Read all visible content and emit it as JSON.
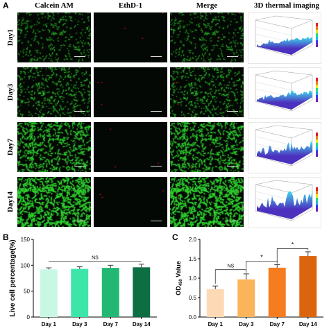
{
  "panel_a": {
    "label": "A",
    "columns": [
      "Calcein AM",
      "EthD-1",
      "Merge",
      "3D thermal imaging"
    ],
    "rows": [
      "Day1",
      "Day3",
      "Day7",
      "Day14"
    ],
    "green_density": [
      0.35,
      0.45,
      0.75,
      1.0
    ],
    "thermal_peak": [
      0.25,
      0.3,
      0.45,
      0.75
    ],
    "colors": {
      "live": "#2ed12e",
      "dead": "#c81414",
      "thermal_low": "#3d1fb8",
      "thermal_high": "#2fe0f0"
    }
  },
  "chart_data": [
    {
      "panel": "B",
      "type": "bar",
      "categories": [
        "Day 1",
        "Day 3",
        "Day 7",
        "Day 14"
      ],
      "values": [
        92,
        93,
        95,
        96
      ],
      "errors": [
        3,
        4,
        5,
        6
      ],
      "colors": [
        "#c8f7e4",
        "#3de6a8",
        "#22b873",
        "#0e6e43"
      ],
      "title": "",
      "xlabel": "",
      "ylabel": "Live cell percentage(%)",
      "ylim": [
        0,
        150
      ],
      "yticks": [
        "0",
        "50",
        "100",
        "150"
      ],
      "annotations": [
        "NS"
      ]
    },
    {
      "panel": "C",
      "type": "bar",
      "categories": [
        "Day 1",
        "Day 3",
        "Day 7",
        "Day 14"
      ],
      "values": [
        0.72,
        0.97,
        1.27,
        1.57
      ],
      "errors": [
        0.08,
        0.14,
        0.08,
        0.11
      ],
      "colors": [
        "#fdd9b5",
        "#fbb45a",
        "#f57c1f",
        "#dd640e"
      ],
      "title": "",
      "xlabel": "",
      "ylabel_parts": [
        "OD",
        "450",
        " Value"
      ],
      "ylim": [
        0,
        2.0
      ],
      "yticks": [
        "0.0",
        "0.5",
        "1.0",
        "1.5",
        "2.0"
      ],
      "annotations": [
        "NS",
        "*",
        "*"
      ]
    }
  ]
}
